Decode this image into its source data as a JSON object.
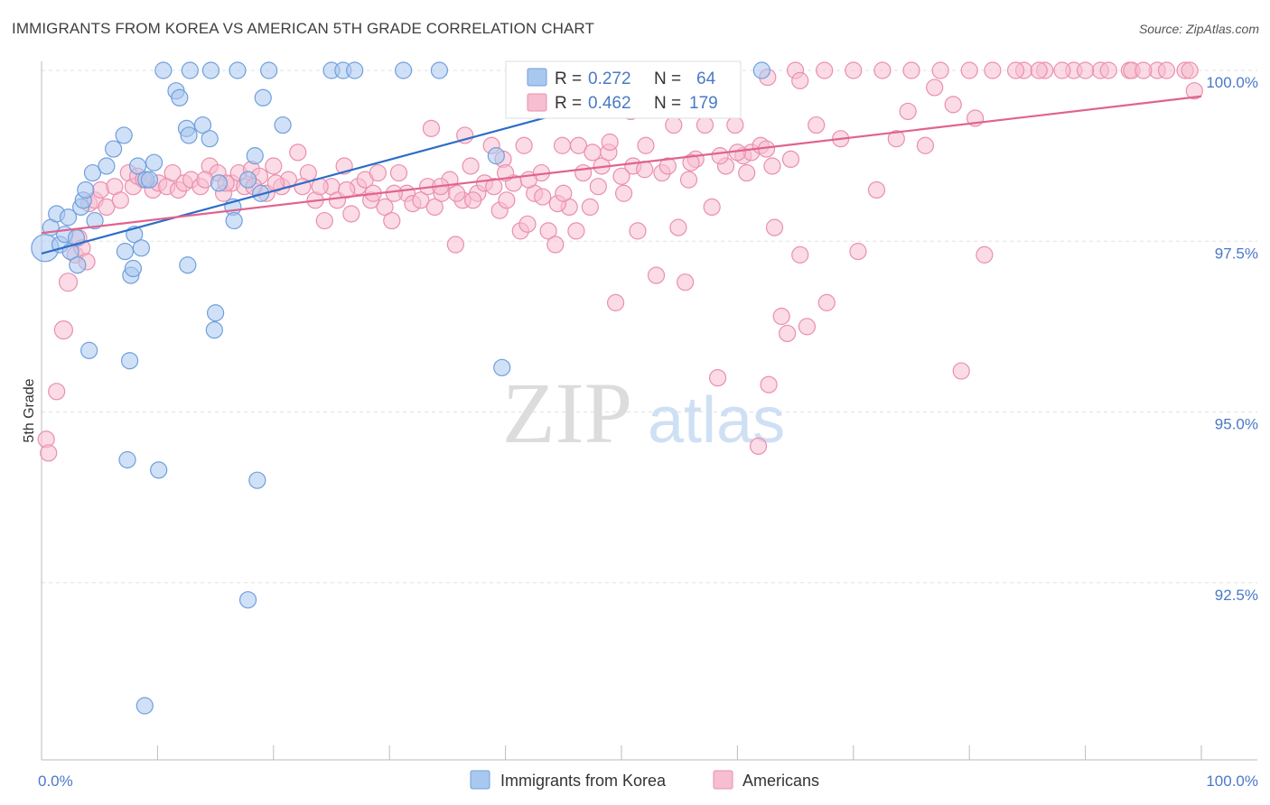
{
  "title": "IMMIGRANTS FROM KOREA VS AMERICAN 5TH GRADE CORRELATION CHART",
  "source": "Source: ZipAtlas.com",
  "watermark": {
    "zip": "ZIP",
    "atlas": "atlas"
  },
  "colors": {
    "blue_fill": "#a9c8f0",
    "blue_stroke": "#6f9fdc",
    "blue_line": "#2c6cc8",
    "pink_fill": "#f7bdd0",
    "pink_stroke": "#ea8fae",
    "pink_line": "#e0638f",
    "axis_text": "#4a78c8"
  },
  "legend": {
    "r_label": "R =",
    "n_label": "N =",
    "series": [
      {
        "r": "0.272",
        "n": "64"
      },
      {
        "r": "0.462",
        "n": "179"
      }
    ]
  },
  "chart_data": {
    "type": "scatter",
    "title": "IMMIGRANTS FROM KOREA VS AMERICAN 5TH GRADE CORRELATION CHART",
    "xlabel": "",
    "ylabel": "5th Grade",
    "xlim": [
      0,
      100
    ],
    "ylim": [
      90.2,
      100.5
    ],
    "x_tick_labels": [
      {
        "value": 0,
        "label": "0.0%"
      },
      {
        "value": 100,
        "label": "100.0%"
      }
    ],
    "y_tick_labels": [
      {
        "value": 100,
        "label": "100.0%"
      },
      {
        "value": 97.5,
        "label": "97.5%"
      },
      {
        "value": 95,
        "label": "95.0%"
      },
      {
        "value": 92.5,
        "label": "92.5%"
      }
    ],
    "grid": "horizontal dashed",
    "legend_position": "top-center",
    "series": [
      {
        "name": "Immigrants from Korea",
        "r": 0.272,
        "n": 64,
        "trend": {
          "x": [
            0,
            59
          ],
          "y": [
            97.32,
            100.02
          ]
        },
        "points": [
          [
            0.3,
            97.4
          ],
          [
            0.8,
            97.7
          ],
          [
            1.3,
            97.9
          ],
          [
            1.6,
            97.45
          ],
          [
            2.0,
            97.6
          ],
          [
            2.3,
            97.85
          ],
          [
            2.5,
            97.35
          ],
          [
            3.0,
            97.55
          ],
          [
            3.4,
            98.0
          ],
          [
            3.6,
            98.1
          ],
          [
            3.8,
            98.25
          ],
          [
            4.4,
            98.5
          ],
          [
            4.6,
            97.8
          ],
          [
            5.6,
            98.6
          ],
          [
            6.2,
            98.85
          ],
          [
            7.1,
            99.05
          ],
          [
            7.2,
            97.35
          ],
          [
            7.7,
            97.0
          ],
          [
            7.9,
            97.1
          ],
          [
            8.0,
            97.6
          ],
          [
            8.3,
            98.6
          ],
          [
            8.6,
            97.4
          ],
          [
            9.0,
            98.4
          ],
          [
            9.3,
            98.4
          ],
          [
            9.7,
            98.65
          ],
          [
            11.6,
            99.7
          ],
          [
            11.9,
            99.6
          ],
          [
            12.5,
            99.15
          ],
          [
            12.7,
            99.05
          ],
          [
            13.9,
            99.2
          ],
          [
            14.5,
            99.0
          ],
          [
            14.9,
            96.2
          ],
          [
            15.0,
            96.45
          ],
          [
            15.3,
            98.35
          ],
          [
            16.5,
            98.0
          ],
          [
            16.6,
            97.8
          ],
          [
            17.8,
            98.4
          ],
          [
            18.4,
            98.75
          ],
          [
            18.9,
            98.2
          ],
          [
            19.1,
            99.6
          ],
          [
            20.8,
            99.2
          ],
          [
            3.1,
            97.15
          ],
          [
            4.1,
            95.9
          ],
          [
            7.6,
            95.75
          ],
          [
            7.4,
            94.3
          ],
          [
            10.1,
            94.15
          ],
          [
            12.6,
            97.15
          ],
          [
            18.6,
            94.0
          ],
          [
            17.8,
            92.25
          ],
          [
            8.9,
            90.7
          ],
          [
            10.5,
            100.0
          ],
          [
            12.8,
            100.0
          ],
          [
            14.6,
            100.0
          ],
          [
            16.9,
            100.0
          ],
          [
            19.6,
            100.0
          ],
          [
            25.0,
            100.0
          ],
          [
            26.0,
            100.0
          ],
          [
            27.0,
            100.0
          ],
          [
            31.2,
            100.0
          ],
          [
            34.3,
            100.0
          ],
          [
            39.2,
            98.75
          ],
          [
            39.7,
            95.65
          ],
          [
            42.7,
            100.0
          ],
          [
            62.1,
            100.0
          ]
        ]
      },
      {
        "name": "Americans",
        "r": 0.462,
        "n": 179,
        "trend": {
          "x": [
            0,
            100
          ],
          "y": [
            97.62,
            99.62
          ]
        },
        "points": [
          [
            0.4,
            94.6
          ],
          [
            0.6,
            94.4
          ],
          [
            1.3,
            95.3
          ],
          [
            1.9,
            96.2
          ],
          [
            2.3,
            96.9
          ],
          [
            2.9,
            97.3
          ],
          [
            3.2,
            97.55
          ],
          [
            3.5,
            97.4
          ],
          [
            3.9,
            97.2
          ],
          [
            4.1,
            98.05
          ],
          [
            4.6,
            98.1
          ],
          [
            5.1,
            98.25
          ],
          [
            5.6,
            98.0
          ],
          [
            6.3,
            98.3
          ],
          [
            6.8,
            98.1
          ],
          [
            7.5,
            98.5
          ],
          [
            7.9,
            98.3
          ],
          [
            8.3,
            98.45
          ],
          [
            8.8,
            98.4
          ],
          [
            9.6,
            98.25
          ],
          [
            10.1,
            98.35
          ],
          [
            10.8,
            98.3
          ],
          [
            11.3,
            98.5
          ],
          [
            11.8,
            98.25
          ],
          [
            12.3,
            98.35
          ],
          [
            12.9,
            98.4
          ],
          [
            13.7,
            98.3
          ],
          [
            14.5,
            98.6
          ],
          [
            15.2,
            98.5
          ],
          [
            15.7,
            98.2
          ],
          [
            16.4,
            98.35
          ],
          [
            17.0,
            98.5
          ],
          [
            17.5,
            98.3
          ],
          [
            18.1,
            98.55
          ],
          [
            18.8,
            98.45
          ],
          [
            19.4,
            98.2
          ],
          [
            20.0,
            98.6
          ],
          [
            20.7,
            98.3
          ],
          [
            21.3,
            98.4
          ],
          [
            22.1,
            98.8
          ],
          [
            23.0,
            98.5
          ],
          [
            23.6,
            98.1
          ],
          [
            24.4,
            97.8
          ],
          [
            25.0,
            98.3
          ],
          [
            25.5,
            98.1
          ],
          [
            26.1,
            98.6
          ],
          [
            26.7,
            97.9
          ],
          [
            27.3,
            98.3
          ],
          [
            27.9,
            98.4
          ],
          [
            28.4,
            98.1
          ],
          [
            29.0,
            98.5
          ],
          [
            29.6,
            98.0
          ],
          [
            30.2,
            97.8
          ],
          [
            30.8,
            98.5
          ],
          [
            31.5,
            98.2
          ],
          [
            32.0,
            98.05
          ],
          [
            32.7,
            98.1
          ],
          [
            33.3,
            98.3
          ],
          [
            33.9,
            98.0
          ],
          [
            34.5,
            98.2
          ],
          [
            35.2,
            98.4
          ],
          [
            35.7,
            97.45
          ],
          [
            36.3,
            98.1
          ],
          [
            37.0,
            98.6
          ],
          [
            37.6,
            98.2
          ],
          [
            38.2,
            98.35
          ],
          [
            38.8,
            98.9
          ],
          [
            39.5,
            97.95
          ],
          [
            40.1,
            98.1
          ],
          [
            40.7,
            98.35
          ],
          [
            41.3,
            97.65
          ],
          [
            41.9,
            97.75
          ],
          [
            42.5,
            98.2
          ],
          [
            43.1,
            98.5
          ],
          [
            43.7,
            97.65
          ],
          [
            44.3,
            97.45
          ],
          [
            44.9,
            98.9
          ],
          [
            45.5,
            98.0
          ],
          [
            46.1,
            97.65
          ],
          [
            46.7,
            98.5
          ],
          [
            47.3,
            98.0
          ],
          [
            48.3,
            98.6
          ],
          [
            48.9,
            98.8
          ],
          [
            49.5,
            96.6
          ],
          [
            50.2,
            98.2
          ],
          [
            50.8,
            99.4
          ],
          [
            51.4,
            97.65
          ],
          [
            52.1,
            98.9
          ],
          [
            53.0,
            97.0
          ],
          [
            54.5,
            99.2
          ],
          [
            54.9,
            97.7
          ],
          [
            55.5,
            96.9
          ],
          [
            56.4,
            98.7
          ],
          [
            57.2,
            99.2
          ],
          [
            57.8,
            98.0
          ],
          [
            58.3,
            95.5
          ],
          [
            59.0,
            98.6
          ],
          [
            59.8,
            99.2
          ],
          [
            60.5,
            98.75
          ],
          [
            61.2,
            98.8
          ],
          [
            62.0,
            98.9
          ],
          [
            62.7,
            95.4
          ],
          [
            63.2,
            97.7
          ],
          [
            63.8,
            96.4
          ],
          [
            64.3,
            96.15
          ],
          [
            65.4,
            97.3
          ],
          [
            66.0,
            96.25
          ],
          [
            66.8,
            99.2
          ],
          [
            67.7,
            96.6
          ],
          [
            68.9,
            99.0
          ],
          [
            70.4,
            97.35
          ],
          [
            72.0,
            98.25
          ],
          [
            73.7,
            99.0
          ],
          [
            74.7,
            99.4
          ],
          [
            76.2,
            98.9
          ],
          [
            77.0,
            99.75
          ],
          [
            78.6,
            99.5
          ],
          [
            79.3,
            95.6
          ],
          [
            80.5,
            99.3
          ],
          [
            81.3,
            97.3
          ],
          [
            84.7,
            100.0
          ],
          [
            86.5,
            100.0
          ],
          [
            89.0,
            100.0
          ],
          [
            91.3,
            100.0
          ],
          [
            93.8,
            100.0
          ],
          [
            96.2,
            100.0
          ],
          [
            98.6,
            100.0
          ],
          [
            99.4,
            99.7
          ],
          [
            65.0,
            100.0
          ],
          [
            67.5,
            100.0
          ],
          [
            70.0,
            100.0
          ],
          [
            72.5,
            100.0
          ],
          [
            75.0,
            100.0
          ],
          [
            77.5,
            100.0
          ],
          [
            80.0,
            100.0
          ],
          [
            82.0,
            100.0
          ],
          [
            84.0,
            100.0
          ],
          [
            86.0,
            100.0
          ],
          [
            88.0,
            100.0
          ],
          [
            90.0,
            100.0
          ],
          [
            92.0,
            100.0
          ],
          [
            94.0,
            100.0
          ],
          [
            95.0,
            100.0
          ],
          [
            97.0,
            100.0
          ],
          [
            99.0,
            100.0
          ],
          [
            58.0,
            99.65
          ],
          [
            62.6,
            99.9
          ],
          [
            65.4,
            99.85
          ],
          [
            53.2,
            99.6
          ],
          [
            33.6,
            99.15
          ],
          [
            36.5,
            99.05
          ],
          [
            39.8,
            98.7
          ],
          [
            41.6,
            98.9
          ],
          [
            42.0,
            98.4
          ],
          [
            43.2,
            98.15
          ],
          [
            46.3,
            98.9
          ],
          [
            47.5,
            98.8
          ],
          [
            49.0,
            98.95
          ],
          [
            51.0,
            98.6
          ],
          [
            53.5,
            98.5
          ],
          [
            55.8,
            98.4
          ],
          [
            57.5,
            99.7
          ],
          [
            60.8,
            98.5
          ],
          [
            63.0,
            98.6
          ],
          [
            64.6,
            98.7
          ],
          [
            35.8,
            98.2
          ],
          [
            37.2,
            98.1
          ],
          [
            39.0,
            98.3
          ],
          [
            44.5,
            98.05
          ],
          [
            40.0,
            98.5
          ],
          [
            45.0,
            98.2
          ],
          [
            48.0,
            98.3
          ],
          [
            50.0,
            98.45
          ],
          [
            52.0,
            98.55
          ],
          [
            54.0,
            98.6
          ],
          [
            56.0,
            98.65
          ],
          [
            58.5,
            98.75
          ],
          [
            60.0,
            98.8
          ],
          [
            62.5,
            98.85
          ],
          [
            34.4,
            98.3
          ],
          [
            30.4,
            98.2
          ],
          [
            28.6,
            98.2
          ],
          [
            26.3,
            98.25
          ],
          [
            24.0,
            98.3
          ],
          [
            22.5,
            98.3
          ],
          [
            20.2,
            98.35
          ],
          [
            18.3,
            98.3
          ],
          [
            15.9,
            98.35
          ],
          [
            14.1,
            98.4
          ],
          [
            61.8,
            94.5
          ]
        ]
      }
    ]
  },
  "bottom_legend": [
    {
      "label": "Immigrants from Korea"
    },
    {
      "label": "Americans"
    }
  ]
}
